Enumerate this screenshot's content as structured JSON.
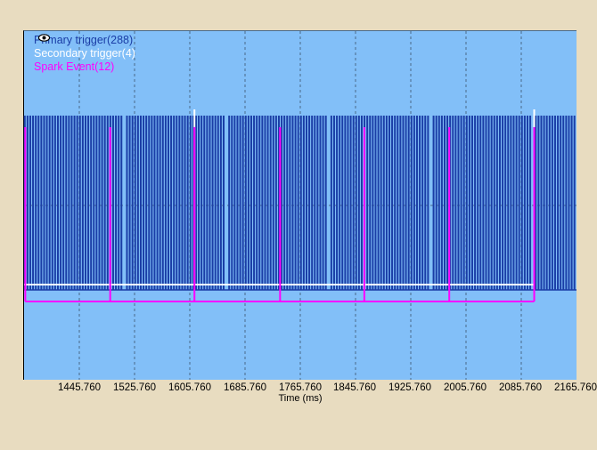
{
  "legend": [
    {
      "label": "Primary trigger(288)",
      "color": "#1a3da6",
      "icon": "eye-icon"
    },
    {
      "label": "Secondary trigger(4)",
      "color": "#ffffff",
      "icon": "eye-icon"
    },
    {
      "label": "Spark Event(12)",
      "color": "#ff00ff",
      "icon": "eye-icon"
    }
  ],
  "chart_data": {
    "type": "line",
    "xlabel": "Time (ms)",
    "x_ticks": [
      "1445.760",
      "1525.760",
      "1605.760",
      "1685.760",
      "1765.760",
      "1845.760",
      "1925.760",
      "2005.760",
      "2085.760",
      "2165.760"
    ],
    "xlim": [
      1365.76,
      2165.76
    ],
    "grid": true,
    "series": [
      {
        "name": "Primary trigger(288)",
        "color": "#1a3da6",
        "pulse_count": 288,
        "pulse_period_ms": 4.0,
        "gap_pattern": "missing-tooth",
        "high": 1,
        "low": 0
      },
      {
        "name": "Secondary trigger(4)",
        "color": "#ffffff",
        "pulse_times_ms": [
          1612.5,
          2104.5
        ],
        "high": 1,
        "low": 0
      },
      {
        "name": "Spark Event(12)",
        "color": "#ff00ff",
        "pulse_times_ms": [
          1367.5,
          1490.5,
          1612.5,
          1736.5,
          1858.5,
          1981.5,
          2104.5
        ],
        "high": 1,
        "low": 0
      }
    ]
  }
}
